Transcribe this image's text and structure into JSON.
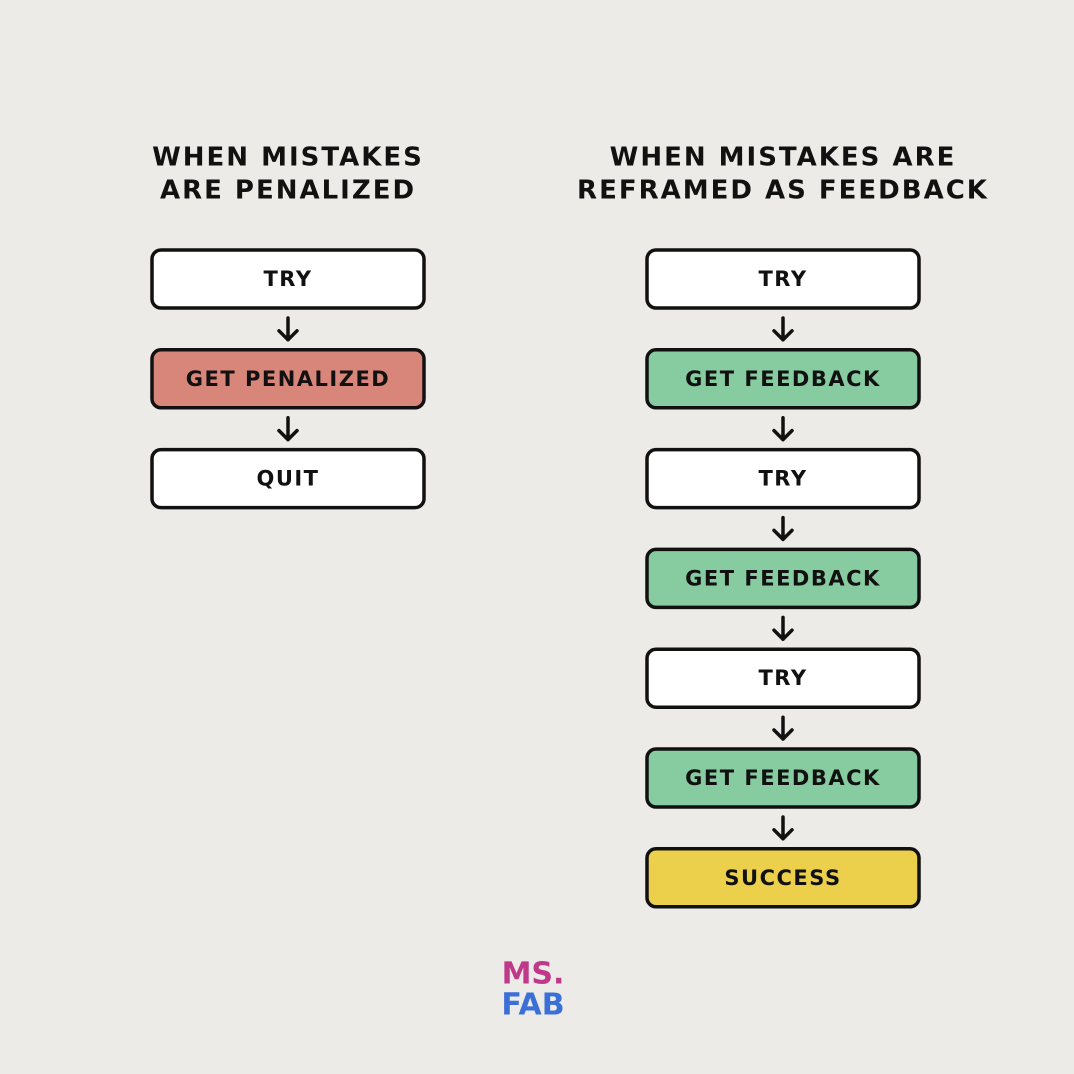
{
  "columns": [
    {
      "title": [
        "WHEN MISTAKES",
        "ARE PENALIZED"
      ],
      "steps": [
        {
          "label": "TRY",
          "color": "#ffffff"
        },
        {
          "label": "GET PENALIZED",
          "color": "#d9867a"
        },
        {
          "label": "QUIT",
          "color": "#ffffff"
        }
      ]
    },
    {
      "title": [
        "WHEN MISTAKES ARE",
        "REFRAMED AS FEEDBACK"
      ],
      "steps": [
        {
          "label": "TRY",
          "color": "#ffffff"
        },
        {
          "label": "GET FEEDBACK",
          "color": "#86cca0"
        },
        {
          "label": "TRY",
          "color": "#ffffff"
        },
        {
          "label": "GET FEEDBACK",
          "color": "#86cca0"
        },
        {
          "label": "TRY",
          "color": "#ffffff"
        },
        {
          "label": "GET FEEDBACK",
          "color": "#86cca0"
        },
        {
          "label": "SUCCESS",
          "color": "#ecd04c"
        }
      ]
    }
  ],
  "logo": [
    "MS.",
    "FAB"
  ]
}
